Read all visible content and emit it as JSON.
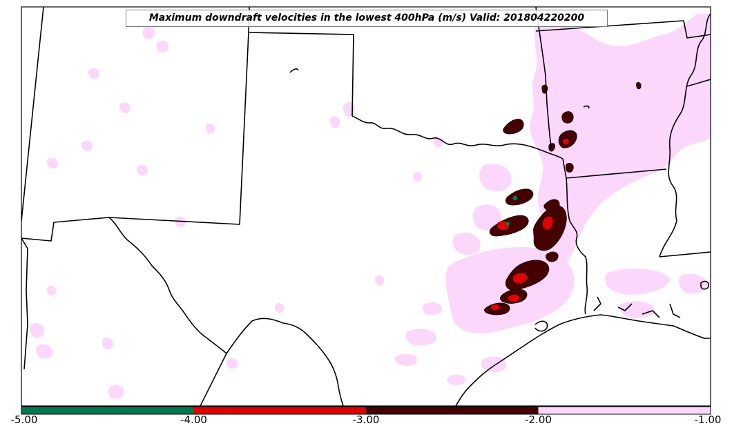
{
  "title": "Maximum downdraft velocities in the lowest 400hPa (m/s) Valid: 201804220200",
  "colorbar": {
    "ticks": [
      "-5.00",
      "-4.00",
      "-3.00",
      "-2.00",
      "-1.00"
    ],
    "bins": [
      {
        "min": -5,
        "max": -4,
        "color": "#007a4e"
      },
      {
        "min": -4,
        "max": -3,
        "color": "#e00000"
      },
      {
        "min": -3,
        "max": -2,
        "color": "#450000"
      },
      {
        "min": -2,
        "max": -1,
        "color": "#fcd7fc"
      }
    ]
  },
  "colors": {
    "boundary": "#000000",
    "weak_downdraft": "#fcd7fc",
    "moderate_downdraft": "#450000",
    "strong_downdraft": "#e00000",
    "extreme_downdraft": "#007a4e"
  }
}
